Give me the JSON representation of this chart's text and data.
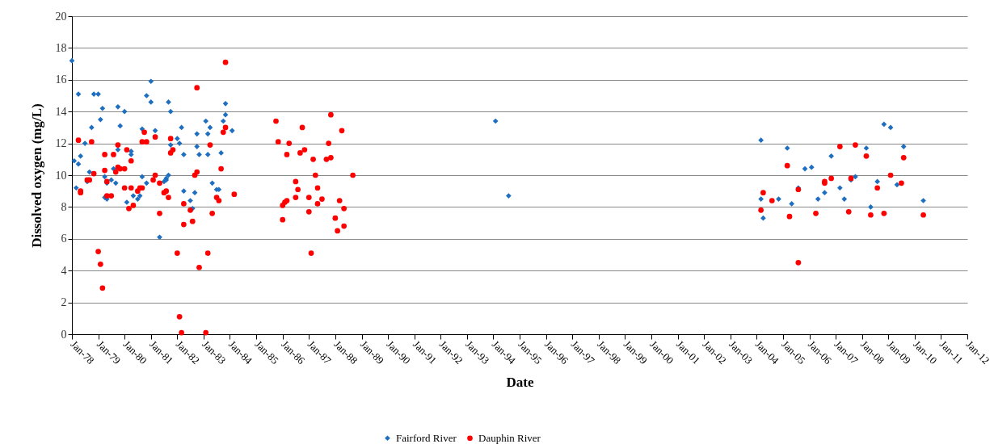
{
  "chart_data": {
    "type": "scatter",
    "xlabel": "Date",
    "ylabel": "Dissolved oxygen (mg/L)",
    "xlim": [
      "1978-01",
      "2012-01"
    ],
    "xticks": [
      {
        "value": "1978-01",
        "label": "Jan-78"
      },
      {
        "value": "1979-01",
        "label": "Jan-79"
      },
      {
        "value": "1980-01",
        "label": "Jan-80"
      },
      {
        "value": "1981-01",
        "label": "Jan-81"
      },
      {
        "value": "1982-01",
        "label": "Jan-82"
      },
      {
        "value": "1983-01",
        "label": "Jan-83"
      },
      {
        "value": "1984-01",
        "label": "Jan-84"
      },
      {
        "value": "1985-01",
        "label": "Jan-85"
      },
      {
        "value": "1986-01",
        "label": "Jan-86"
      },
      {
        "value": "1987-01",
        "label": "Jan-87"
      },
      {
        "value": "1988-01",
        "label": "Jan-88"
      },
      {
        "value": "1989-01",
        "label": "Jan-89"
      },
      {
        "value": "1990-01",
        "label": "Jan-90"
      },
      {
        "value": "1991-01",
        "label": "Jan-91"
      },
      {
        "value": "1992-01",
        "label": "Jan-92"
      },
      {
        "value": "1993-01",
        "label": "Jan-93"
      },
      {
        "value": "1994-01",
        "label": "Jan-94"
      },
      {
        "value": "1995-01",
        "label": "Jan-95"
      },
      {
        "value": "1996-01",
        "label": "Jan-96"
      },
      {
        "value": "1997-01",
        "label": "Jan-97"
      },
      {
        "value": "1998-01",
        "label": "Jan-98"
      },
      {
        "value": "1999-01",
        "label": "Jan-99"
      },
      {
        "value": "2000-01",
        "label": "Jan-00"
      },
      {
        "value": "2001-01",
        "label": "Jan-01"
      },
      {
        "value": "2002-01",
        "label": "Jan-02"
      },
      {
        "value": "2003-01",
        "label": "Jan-03"
      },
      {
        "value": "2004-01",
        "label": "Jan-04"
      },
      {
        "value": "2005-01",
        "label": "Jan-05"
      },
      {
        "value": "2006-01",
        "label": "Jan-06"
      },
      {
        "value": "2007-01",
        "label": "Jan-07"
      },
      {
        "value": "2008-01",
        "label": "Jan-08"
      },
      {
        "value": "2009-01",
        "label": "Jan-09"
      },
      {
        "value": "2010-01",
        "label": "Jan-10"
      },
      {
        "value": "2011-01",
        "label": "Jan-11"
      },
      {
        "value": "2012-01",
        "label": "Jan-12"
      }
    ],
    "ylim": [
      0,
      20
    ],
    "yticks": [
      0,
      2,
      4,
      6,
      8,
      10,
      12,
      14,
      16,
      18,
      20
    ],
    "grid": "y",
    "legend": "bottom",
    "series": [
      {
        "name": "Fairford River",
        "color": "#1f6fc0",
        "marker": "diamond",
        "x": [
          "1978-01",
          "1978-02",
          "1978-03",
          "1978-04",
          "1978-04",
          "1978-05",
          "1978-07",
          "1978-08",
          "1978-09",
          "1978-10",
          "1978-11",
          "1979-01",
          "1979-02",
          "1979-03",
          "1979-04",
          "1979-04",
          "1979-05",
          "1979-05",
          "1979-07",
          "1979-08",
          "1979-09",
          "1979-10",
          "1979-10",
          "1979-11",
          "1980-01",
          "1980-02",
          "1980-04",
          "1980-04",
          "1980-05",
          "1980-07",
          "1980-08",
          "1980-09",
          "1980-09",
          "1980-11",
          "1980-11",
          "1981-01",
          "1981-01",
          "1981-03",
          "1981-07",
          "1981-05",
          "1981-08",
          "1981-08",
          "1981-09",
          "1981-09",
          "1981-10",
          "1981-10",
          "1982-01",
          "1982-02",
          "1982-03",
          "1982-04",
          "1982-04",
          "1982-07",
          "1982-08",
          "1982-09",
          "1982-10",
          "1982-10",
          "1982-11",
          "1983-02",
          "1983-03",
          "1983-03",
          "1983-04",
          "1983-05",
          "1983-07",
          "1983-08",
          "1983-09",
          "1983-10",
          "1983-11",
          "1983-11",
          "1984-02",
          "1994-02",
          "1994-08",
          "2004-03",
          "2004-03",
          "2004-04",
          "2004-11",
          "2005-03",
          "2005-05",
          "2005-08",
          "2005-11",
          "2006-02",
          "2006-05",
          "2006-08",
          "2006-11",
          "2007-03",
          "2007-05",
          "2007-08",
          "2007-10",
          "2008-03",
          "2008-05",
          "2008-08",
          "2008-11",
          "2009-02",
          "2009-05",
          "2009-08",
          "2010-05"
        ],
        "values": [
          17.2,
          10.9,
          9.2,
          10.7,
          15.1,
          11.2,
          12.0,
          9.6,
          10.2,
          13.0,
          15.1,
          15.1,
          13.5,
          14.2,
          9.9,
          8.6,
          8.5,
          9.5,
          9.7,
          10.4,
          9.5,
          11.6,
          14.3,
          13.1,
          14.0,
          8.3,
          11.5,
          11.3,
          8.7,
          8.5,
          8.7,
          9.9,
          12.9,
          9.5,
          15.0,
          15.9,
          14.6,
          12.8,
          9.6,
          6.1,
          9.7,
          9.8,
          10.0,
          14.6,
          11.9,
          14.0,
          12.3,
          12.0,
          13.0,
          11.3,
          9.0,
          8.4,
          7.9,
          8.9,
          12.6,
          11.8,
          11.3,
          13.4,
          11.3,
          12.6,
          13.0,
          9.5,
          9.1,
          9.1,
          11.4,
          13.4,
          13.8,
          14.5,
          12.8,
          13.4,
          8.7,
          12.2,
          8.5,
          7.3,
          8.5,
          11.7,
          8.2,
          9.2,
          10.4,
          10.5,
          8.5,
          8.9,
          11.2,
          9.2,
          8.5,
          9.7,
          9.9,
          11.7,
          8.0,
          9.6,
          13.2,
          13.0,
          9.4,
          11.8,
          8.4
        ]
      },
      {
        "name": "Dauphin River",
        "color": "#ff0000",
        "marker": "circle",
        "x": [
          "1978-04",
          "1978-05",
          "1978-05",
          "1978-08",
          "1978-09",
          "1978-10",
          "1978-11",
          "1979-01",
          "1979-02",
          "1979-03",
          "1979-04",
          "1979-04",
          "1979-05",
          "1979-05",
          "1979-07",
          "1979-08",
          "1979-09",
          "1979-10",
          "1979-10",
          "1979-11",
          "1980-01",
          "1980-01",
          "1980-02",
          "1980-03",
          "1980-04",
          "1980-04",
          "1980-05",
          "1980-07",
          "1980-08",
          "1980-09",
          "1980-09",
          "1980-10",
          "1980-11",
          "1981-02",
          "1981-03",
          "1981-03",
          "1981-05",
          "1981-05",
          "1981-07",
          "1981-08",
          "1981-09",
          "1981-10",
          "1981-10",
          "1981-11",
          "1982-01",
          "1982-02",
          "1982-03",
          "1982-04",
          "1982-04",
          "1982-07",
          "1982-08",
          "1982-09",
          "1982-10",
          "1982-10",
          "1982-11",
          "1983-02",
          "1983-03",
          "1983-04",
          "1983-05",
          "1983-07",
          "1983-08",
          "1983-09",
          "1983-10",
          "1983-11",
          "1983-11",
          "1984-03",
          "1985-10",
          "1985-11",
          "1986-01",
          "1986-01",
          "1986-02",
          "1986-03",
          "1986-03",
          "1986-04",
          "1986-07",
          "1986-07",
          "1986-08",
          "1986-09",
          "1986-10",
          "1986-11",
          "1987-01",
          "1987-01",
          "1987-02",
          "1987-03",
          "1987-04",
          "1987-05",
          "1987-05",
          "1987-07",
          "1987-09",
          "1987-10",
          "1987-11",
          "1987-11",
          "1988-01",
          "1988-02",
          "1988-03",
          "1988-04",
          "1988-05",
          "1988-05",
          "1988-09",
          "2004-03",
          "2004-04",
          "2004-08",
          "2005-03",
          "2005-04",
          "2005-08",
          "2005-08",
          "2006-04",
          "2006-08",
          "2006-08",
          "2006-11",
          "2007-03",
          "2007-07",
          "2007-08",
          "2007-10",
          "2008-03",
          "2008-05",
          "2008-08",
          "2008-11",
          "2009-02",
          "2009-07",
          "2009-08",
          "2010-05"
        ],
        "values": [
          12.2,
          9.0,
          8.9,
          9.7,
          9.7,
          12.1,
          10.1,
          5.2,
          4.4,
          2.9,
          11.3,
          10.3,
          9.6,
          8.7,
          8.7,
          11.3,
          10.2,
          11.9,
          10.5,
          10.4,
          9.2,
          10.4,
          11.6,
          7.9,
          10.9,
          9.2,
          8.1,
          9.0,
          9.2,
          9.2,
          12.1,
          12.7,
          12.1,
          9.7,
          10.0,
          12.4,
          7.6,
          9.5,
          8.9,
          9.0,
          8.6,
          11.4,
          12.3,
          11.6,
          5.1,
          1.1,
          0.1,
          6.9,
          8.2,
          7.8,
          7.1,
          10.0,
          10.2,
          15.5,
          4.2,
          0.1,
          5.1,
          11.9,
          7.6,
          8.6,
          8.4,
          10.4,
          12.7,
          13.0,
          17.1,
          8.8,
          13.4,
          12.1,
          8.1,
          7.2,
          8.3,
          11.3,
          8.4,
          12.0,
          9.6,
          8.6,
          9.1,
          11.4,
          13.0,
          11.6,
          8.6,
          7.7,
          5.1,
          11.0,
          10.0,
          9.2,
          8.2,
          8.5,
          11.0,
          12.0,
          13.8,
          11.1,
          7.3,
          6.5,
          8.4,
          12.8,
          6.8,
          7.9,
          10.0,
          7.8,
          8.9,
          8.4,
          10.6,
          7.4,
          9.1,
          4.5,
          7.6,
          9.5,
          9.6,
          9.8,
          11.8,
          7.7,
          9.8,
          11.9,
          11.2,
          7.5,
          9.2,
          7.6,
          10.0,
          9.5,
          11.1,
          7.5
        ]
      }
    ]
  }
}
